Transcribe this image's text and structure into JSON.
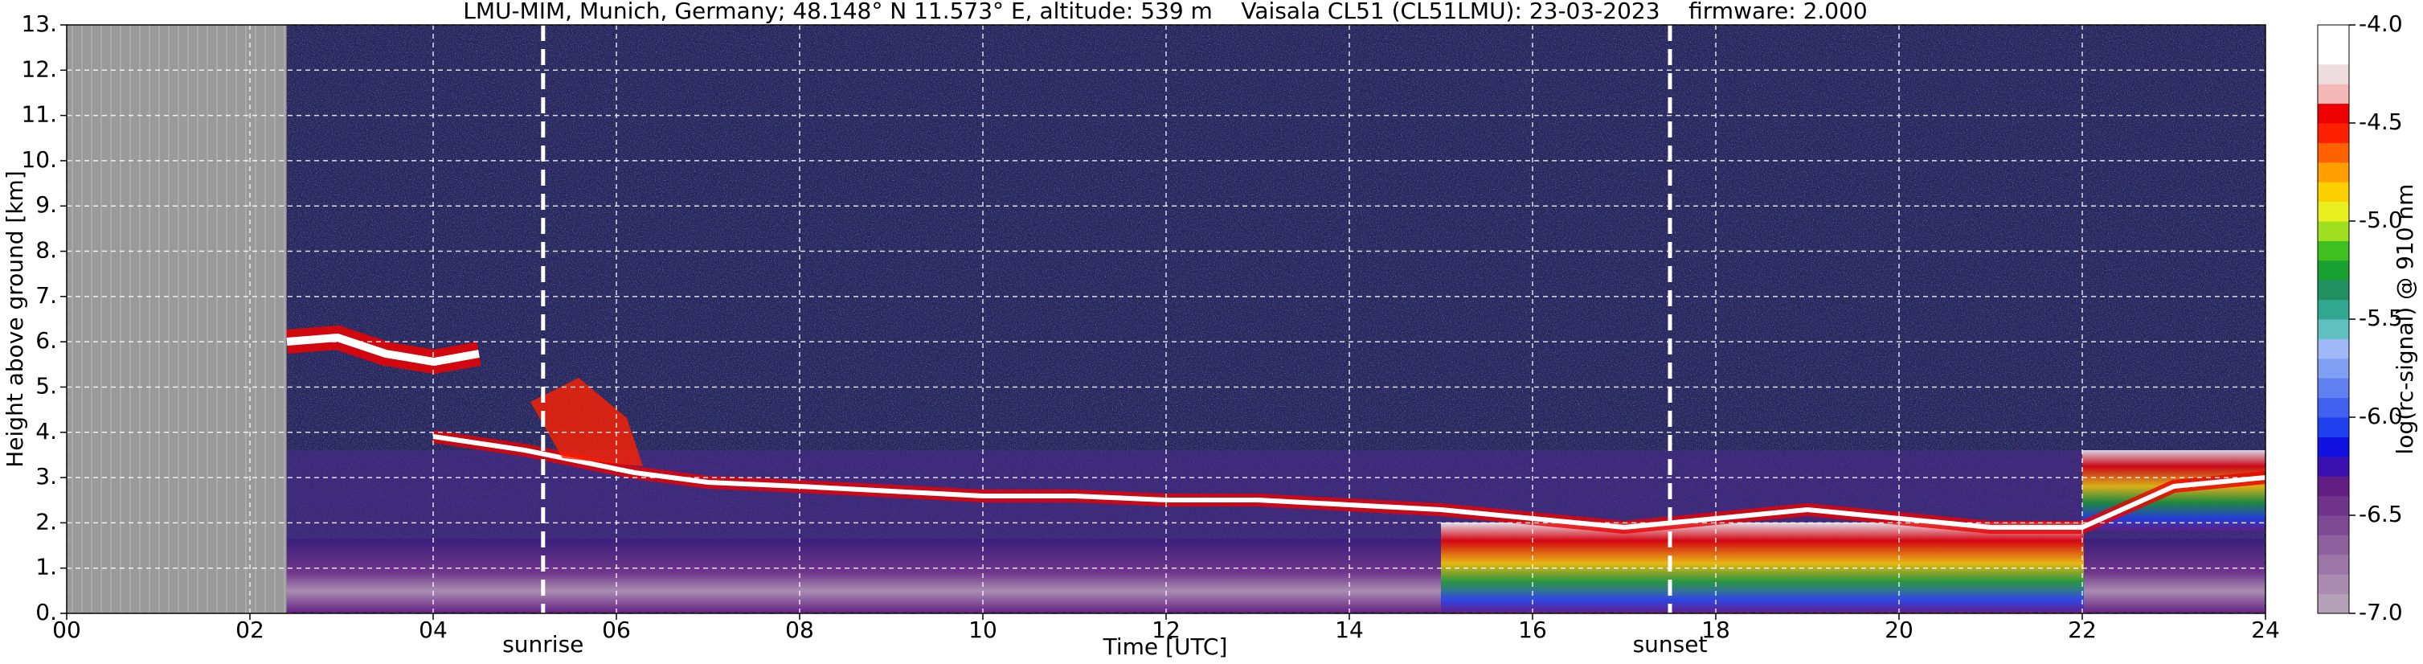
{
  "chart_data": {
    "type": "heatmap",
    "title": "LMU-MIM, Munich, Germany; 48.148° N 11.573° E, altitude: 539 m    Vaisala CL51 (CL51LMU): 23-03-2023    firmware: 2.000",
    "xlabel": "Time [UTC]",
    "ylabel": "Height above ground [km]",
    "xlim": [
      0,
      24
    ],
    "xticks": [
      {
        "value": 0,
        "label": "00"
      },
      {
        "value": 2,
        "label": "02"
      },
      {
        "value": 4,
        "label": "04"
      },
      {
        "value": 6,
        "label": "06"
      },
      {
        "value": 8,
        "label": "08"
      },
      10,
      12,
      14,
      16,
      18,
      20,
      22,
      24
    ],
    "ylim": [
      0,
      13
    ],
    "yticks": [
      {
        "value": 0,
        "label": "0."
      },
      {
        "value": 1,
        "label": "1."
      },
      {
        "value": 2,
        "label": "2."
      },
      {
        "value": 3,
        "label": "3."
      },
      {
        "value": 4,
        "label": "4."
      },
      {
        "value": 5,
        "label": "5."
      },
      {
        "value": 6,
        "label": "6."
      },
      {
        "value": 7,
        "label": "7."
      },
      {
        "value": 8,
        "label": "8."
      },
      {
        "value": 9,
        "label": "9."
      },
      {
        "value": 10,
        "label": "10."
      },
      {
        "value": 11,
        "label": "11."
      },
      {
        "value": 12,
        "label": "12."
      },
      {
        "value": 13,
        "label": "13."
      }
    ],
    "grid": true,
    "missing_xlim": [
      0,
      2.4
    ],
    "annotations": [
      {
        "text": "sunrise",
        "x": 5.2
      },
      {
        "text": "sunset",
        "x": 17.5
      }
    ],
    "colorbar": {
      "label": "log(rc-signal) @ 910 nm",
      "zlim": [
        -7,
        -4
      ],
      "zticks": [
        {
          "value": -7,
          "label": "-7.0"
        },
        -6.5,
        {
          "value": -6,
          "label": "-6.0"
        },
        -5.5,
        {
          "value": -5,
          "label": "-5.0"
        },
        -4.5,
        {
          "value": -4,
          "label": "-4.0"
        }
      ],
      "colors": [
        "#b5a2b8",
        "#a98cb0",
        "#9c76a6",
        "#8e609d",
        "#7f4a94",
        "#70348b",
        "#621e83",
        "#3a10b0",
        "#1010e0",
        "#2040f0",
        "#4060f0",
        "#6080f0",
        "#80a0f4",
        "#a0b8f8",
        "#60c0c0",
        "#30a890",
        "#209060",
        "#18a030",
        "#40c020",
        "#a0e020",
        "#e8f020",
        "#ffd000",
        "#ffa000",
        "#ff6000",
        "#ff2000",
        "#ee0000",
        "#f4b8b8",
        "#eedddd",
        "#ffffff",
        "#ffffff"
      ]
    }
  }
}
